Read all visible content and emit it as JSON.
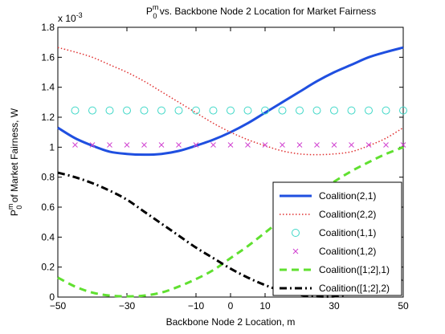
{
  "chart_data": {
    "type": "line",
    "title": "P",
    "title_sup": "m",
    "title_sub": "0",
    "title_rest": " vs. Backbone Node 2 Location for Market Fairness",
    "xlabel": "Backbone Node 2 Location, m",
    "ylabel_pre": "P",
    "ylabel_sup": "m",
    "ylabel_sub": "0",
    "ylabel_rest": " of Market Fairness, W",
    "y_multiplier": "x 10",
    "y_multiplier_exp": "-3",
    "xlim": [
      -50,
      50
    ],
    "ylim": [
      0,
      1.8
    ],
    "xticks": [
      -50,
      -30,
      -10,
      0,
      10,
      30,
      50
    ],
    "xtick_labels": [
      "−50",
      "−30",
      "−10",
      "0",
      "10",
      "30",
      "50"
    ],
    "yticks": [
      0,
      0.2,
      0.4,
      0.6,
      0.8,
      1,
      1.2,
      1.4,
      1.6,
      1.8
    ],
    "ytick_labels": [
      "0",
      "0.2",
      "0.4",
      "0.6",
      "0.8",
      "1",
      "1.2",
      "1.4",
      "1.6",
      "1.8"
    ],
    "grid": false,
    "legend_position": "bottom-right",
    "series": [
      {
        "name": "Coalition(2,1)",
        "color": "#1f4fe0",
        "style": "solid",
        "marker": "none",
        "x": [
          -50,
          -45,
          -40,
          -35,
          -30,
          -25,
          -20,
          -15,
          -10,
          -5,
          0,
          5,
          10,
          15,
          20,
          25,
          30,
          35,
          40,
          45,
          50
        ],
        "y": [
          1.13,
          1.06,
          1.01,
          0.97,
          0.955,
          0.95,
          0.955,
          0.975,
          1.01,
          1.05,
          1.1,
          1.16,
          1.23,
          1.3,
          1.37,
          1.44,
          1.5,
          1.55,
          1.6,
          1.635,
          1.665
        ]
      },
      {
        "name": "Coalition(2,2)",
        "color": "#e03030",
        "style": "dotted",
        "marker": "none",
        "x": [
          -50,
          -45,
          -40,
          -35,
          -30,
          -25,
          -20,
          -15,
          -10,
          -5,
          0,
          5,
          10,
          15,
          20,
          25,
          30,
          35,
          40,
          45,
          50
        ],
        "y": [
          1.665,
          1.635,
          1.6,
          1.55,
          1.5,
          1.44,
          1.37,
          1.3,
          1.23,
          1.16,
          1.1,
          1.05,
          1.01,
          0.975,
          0.955,
          0.95,
          0.955,
          0.97,
          1.01,
          1.06,
          1.13
        ]
      },
      {
        "name": "Coalition(1,1)",
        "color": "#40d8c8",
        "style": "none",
        "marker": "circle",
        "x": [
          -45,
          -40,
          -35,
          -30,
          -25,
          -20,
          -15,
          -10,
          -5,
          0,
          5,
          10,
          15,
          20,
          25,
          30,
          35,
          40,
          45,
          50
        ],
        "y": [
          1.245,
          1.245,
          1.245,
          1.245,
          1.245,
          1.245,
          1.245,
          1.245,
          1.245,
          1.245,
          1.245,
          1.245,
          1.245,
          1.245,
          1.245,
          1.245,
          1.245,
          1.245,
          1.245,
          1.245
        ]
      },
      {
        "name": "Coalition(1,2)",
        "color": "#d040d0",
        "style": "none",
        "marker": "x",
        "x": [
          -45,
          -40,
          -35,
          -30,
          -25,
          -20,
          -15,
          -10,
          -5,
          0,
          5,
          10,
          15,
          20,
          25,
          30,
          35,
          40,
          45,
          50
        ],
        "y": [
          1.015,
          1.015,
          1.015,
          1.015,
          1.015,
          1.015,
          1.015,
          1.015,
          1.015,
          1.015,
          1.015,
          1.015,
          1.015,
          1.015,
          1.015,
          1.015,
          1.015,
          1.015,
          1.015,
          1.015
        ]
      },
      {
        "name": "Coalition([1;2],1)",
        "color": "#60e030",
        "style": "dashed",
        "marker": "none",
        "x": [
          -50,
          -45,
          -40,
          -35,
          -30,
          -25,
          -20,
          -15,
          -10,
          -5,
          0,
          5,
          10,
          15,
          20,
          25,
          30,
          35,
          40,
          45,
          50
        ],
        "y": [
          0.13,
          0.07,
          0.03,
          0.01,
          0.005,
          0.01,
          0.03,
          0.07,
          0.12,
          0.18,
          0.26,
          0.34,
          0.43,
          0.52,
          0.61,
          0.69,
          0.77,
          0.84,
          0.9,
          0.955,
          1.0
        ]
      },
      {
        "name": "Coalition([1;2],2)",
        "color": "#000000",
        "style": "dashdot",
        "marker": "none",
        "x": [
          -50,
          -45,
          -40,
          -35,
          -30,
          -25,
          -20,
          -15,
          -10,
          -5,
          0,
          5,
          10,
          15,
          20,
          25,
          30,
          35,
          40,
          45,
          50
        ],
        "y": [
          0.83,
          0.8,
          0.76,
          0.71,
          0.65,
          0.57,
          0.49,
          0.41,
          0.33,
          0.26,
          0.19,
          0.13,
          0.08,
          0.04,
          0.015,
          0.005,
          0.005,
          0.02,
          0.04,
          0.075,
          0.12
        ]
      }
    ]
  }
}
